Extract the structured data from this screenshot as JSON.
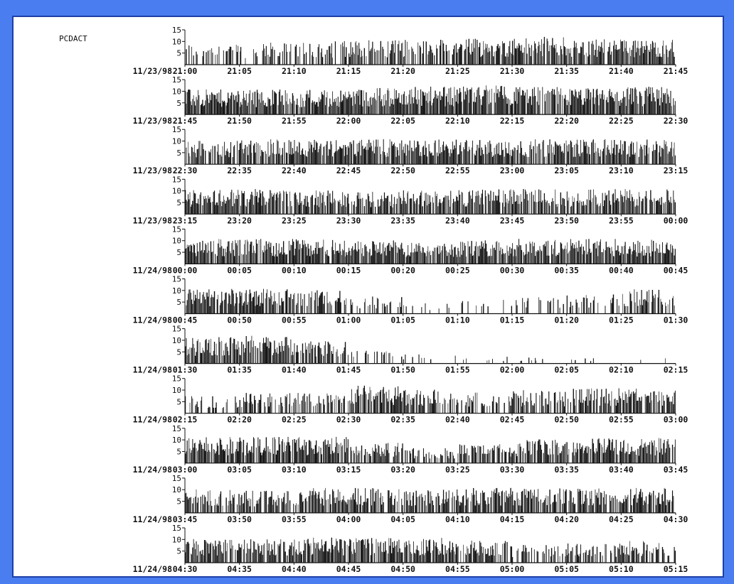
{
  "colors": {
    "frame": "#4a7ef0",
    "paper": "#ffffff",
    "ink": "#111111"
  },
  "chart_data": {
    "type": "bar",
    "title": "PCDACT",
    "yticks": [
      5,
      10,
      15
    ],
    "ylim": [
      0,
      15
    ],
    "grid": false,
    "legend": "none",
    "panels": [
      {
        "date": "11/23/98",
        "ticks": [
          "21:00",
          "21:05",
          "21:10",
          "21:15",
          "21:20",
          "21:25",
          "21:30",
          "21:35",
          "21:40",
          "21:45"
        ],
        "density": [
          0.3,
          0.5,
          0.45,
          0.8,
          0.75,
          0.6,
          0.9,
          0.9,
          0.85,
          0.9
        ],
        "level": [
          7,
          8,
          8,
          9,
          9,
          9,
          10,
          10,
          9,
          9
        ]
      },
      {
        "date": "11/23/98",
        "ticks": [
          "21:45",
          "21:50",
          "21:55",
          "22:00",
          "22:05",
          "22:10",
          "22:15",
          "22:20",
          "22:25",
          "22:30"
        ],
        "density": [
          0.95,
          0.95,
          0.95,
          0.95,
          0.95,
          0.95,
          0.9,
          0.9,
          0.95,
          0.95
        ],
        "level": [
          9,
          9,
          9,
          9,
          10,
          10,
          11,
          9,
          10,
          10
        ]
      },
      {
        "date": "11/23/98",
        "ticks": [
          "22:30",
          "22:35",
          "22:40",
          "22:45",
          "22:50",
          "22:55",
          "23:00",
          "23:05",
          "23:10",
          "23:15"
        ],
        "density": [
          0.6,
          0.85,
          0.9,
          0.95,
          0.95,
          0.9,
          0.9,
          0.9,
          0.9,
          0.9
        ],
        "level": [
          8,
          9,
          9,
          9,
          9,
          9,
          9,
          9,
          9,
          9
        ]
      },
      {
        "date": "11/23/98",
        "ticks": [
          "23:15",
          "23:20",
          "23:25",
          "23:30",
          "23:35",
          "23:40",
          "23:45",
          "23:50",
          "23:55",
          "00:00"
        ],
        "density": [
          0.9,
          0.9,
          0.9,
          0.8,
          0.8,
          0.9,
          0.9,
          0.9,
          0.9,
          0.9
        ],
        "level": [
          9,
          9,
          9,
          8,
          8,
          9,
          9,
          9,
          9,
          9
        ]
      },
      {
        "date": "11/24/98",
        "ticks": [
          "00:00",
          "00:05",
          "00:10",
          "00:15",
          "00:20",
          "00:25",
          "00:30",
          "00:35",
          "00:40",
          "00:45"
        ],
        "density": [
          0.95,
          0.95,
          0.95,
          0.95,
          0.9,
          0.9,
          0.95,
          0.95,
          0.95,
          0.95
        ],
        "level": [
          9,
          9,
          9,
          9,
          8,
          8,
          9,
          9,
          9,
          9
        ]
      },
      {
        "date": "11/24/98",
        "ticks": [
          "00:45",
          "00:50",
          "00:55",
          "01:00",
          "01:05",
          "01:10",
          "01:15",
          "01:20",
          "01:25",
          "01:30"
        ],
        "density": [
          0.9,
          0.9,
          0.85,
          0.55,
          0.15,
          0.12,
          0.3,
          0.2,
          0.6,
          0.7
        ],
        "level": [
          9,
          9,
          9,
          8,
          5,
          3,
          7,
          5,
          9,
          9
        ]
      },
      {
        "date": "11/24/98",
        "ticks": [
          "01:30",
          "01:35",
          "01:40",
          "01:45",
          "01:50",
          "01:55",
          "02:00",
          "02:05",
          "02:10",
          "02:15"
        ],
        "density": [
          0.85,
          0.9,
          0.85,
          0.4,
          0.15,
          0.12,
          0.06,
          0.06,
          0.05,
          0.05
        ],
        "level": [
          9,
          10,
          10,
          6,
          4,
          3,
          3,
          2,
          2,
          2
        ]
      },
      {
        "date": "11/24/98",
        "ticks": [
          "02:15",
          "02:20",
          "02:25",
          "02:30",
          "02:35",
          "02:40",
          "02:45",
          "02:50",
          "02:55",
          "03:00"
        ],
        "density": [
          0.1,
          0.9,
          0.3,
          0.95,
          0.8,
          0.4,
          0.5,
          0.7,
          0.8,
          0.8
        ],
        "level": [
          2,
          11,
          4,
          11,
          9,
          8,
          8,
          9,
          9,
          9
        ]
      },
      {
        "date": "11/24/98",
        "ticks": [
          "03:00",
          "03:05",
          "03:10",
          "03:15",
          "03:20",
          "03:25",
          "03:30",
          "03:35",
          "03:40",
          "03:45"
        ],
        "density": [
          0.8,
          0.9,
          0.9,
          0.95,
          0.4,
          0.55,
          0.75,
          0.85,
          0.9,
          0.9
        ],
        "level": [
          9,
          10,
          9,
          10,
          5,
          6,
          8,
          9,
          9,
          9
        ]
      },
      {
        "date": "11/24/98",
        "ticks": [
          "03:45",
          "03:50",
          "03:55",
          "04:00",
          "04:05",
          "04:10",
          "04:15",
          "04:20",
          "04:25",
          "04:30"
        ],
        "density": [
          0.8,
          0.75,
          0.75,
          0.9,
          0.7,
          0.85,
          0.85,
          0.8,
          0.8,
          0.8
        ],
        "level": [
          9,
          8,
          8,
          10,
          8,
          9,
          9,
          9,
          9,
          9
        ]
      },
      {
        "date": "11/24/98",
        "ticks": [
          "04:30",
          "04:35",
          "04:40",
          "04:45",
          "04:50",
          "04:55",
          "05:00",
          "05:05",
          "05:10",
          "05:15"
        ],
        "density": [
          0.9,
          0.8,
          0.85,
          0.9,
          0.9,
          0.85,
          0.55,
          0.45,
          0.6,
          0.6
        ],
        "level": [
          9,
          8,
          9,
          9,
          9,
          9,
          7,
          6,
          8,
          8
        ]
      }
    ]
  }
}
